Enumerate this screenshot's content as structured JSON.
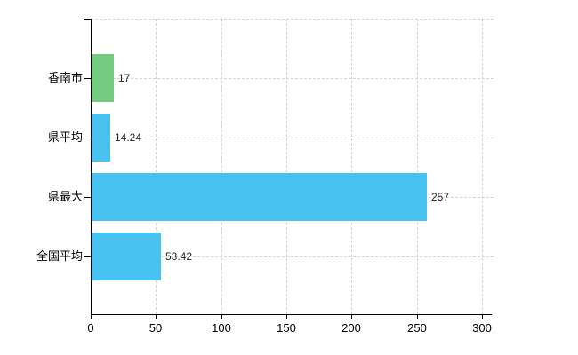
{
  "chart_data": {
    "type": "bar",
    "orientation": "horizontal",
    "categories": [
      "香南市",
      "県平均",
      "県最大",
      "全国平均"
    ],
    "values": [
      17,
      14.24,
      257,
      53.42
    ],
    "value_labels": [
      "17",
      "14.24",
      "257",
      "53.42"
    ],
    "bar_colors": [
      "#74cb80",
      "#47c2f1",
      "#47c2f1",
      "#47c2f1"
    ],
    "xticks": [
      0,
      50,
      100,
      150,
      200,
      250,
      300
    ],
    "xtick_labels": [
      "0",
      "50",
      "100",
      "150",
      "200",
      "250",
      "300"
    ],
    "xlim": [
      0,
      300
    ],
    "grid": true,
    "grid_style": "dashed",
    "legend": false,
    "colors": {
      "grid": "#d4d4d4",
      "axis": "#000000",
      "text": "#000000",
      "background": "#ffffff",
      "accent_green": "#74cb80",
      "accent_blue": "#47c2f1"
    }
  }
}
